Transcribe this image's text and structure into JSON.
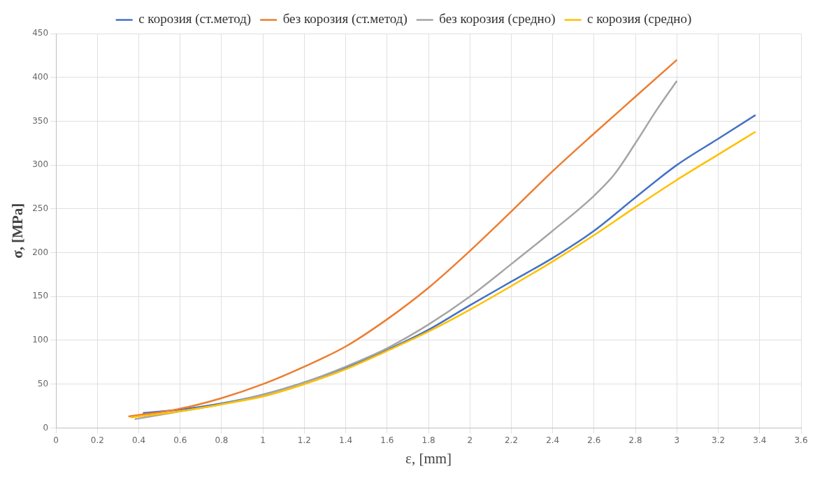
{
  "chart_data": {
    "type": "line",
    "xlabel": "ε, [mm]",
    "ylabel": "σ, [MPa]",
    "xlim": [
      0,
      3.6
    ],
    "ylim": [
      0,
      450
    ],
    "xticks": [
      0,
      0.2,
      0.4,
      0.6,
      0.8,
      1,
      1.2,
      1.4,
      1.6,
      1.8,
      2,
      2.2,
      2.4,
      2.6,
      2.8,
      3,
      3.2,
      3.4,
      3.6
    ],
    "yticks": [
      0,
      50,
      100,
      150,
      200,
      250,
      300,
      350,
      400,
      450
    ],
    "grid": true,
    "legend": "top",
    "marker": "none",
    "line_style": "solid",
    "series": [
      {
        "name": "с корозия (ст.метод)",
        "color": "#4472c4",
        "x": [
          0.42,
          0.6,
          0.8,
          1.0,
          1.2,
          1.4,
          1.6,
          1.8,
          2.0,
          2.2,
          2.4,
          2.6,
          2.8,
          3.0,
          3.2,
          3.38
        ],
        "values": [
          17,
          21,
          28,
          38,
          52,
          69,
          89,
          112,
          140,
          167,
          194,
          225,
          263,
          300,
          330,
          357
        ]
      },
      {
        "name": "без корозия (ст.метод)",
        "color": "#ed7d31",
        "x": [
          0.35,
          0.6,
          0.8,
          1.0,
          1.2,
          1.4,
          1.6,
          1.8,
          2.0,
          2.2,
          2.4,
          2.6,
          2.8,
          3.0
        ],
        "values": [
          13,
          22,
          34,
          50,
          70,
          93,
          124,
          160,
          202,
          247,
          293,
          336,
          378,
          420
        ]
      },
      {
        "name": "без корозия (средно)",
        "color": "#a5a5a5",
        "x": [
          0.38,
          0.6,
          0.8,
          1.0,
          1.2,
          1.4,
          1.6,
          1.8,
          2.0,
          2.2,
          2.4,
          2.6,
          2.7,
          2.8,
          2.9,
          3.0
        ],
        "values": [
          10,
          19,
          27,
          38,
          52,
          70,
          91,
          118,
          150,
          187,
          225,
          265,
          290,
          325,
          362,
          396
        ]
      },
      {
        "name": "с корозия (средно)",
        "color": "#ffc000",
        "x": [
          0.36,
          0.6,
          0.8,
          1.0,
          1.2,
          1.4,
          1.6,
          1.8,
          2.0,
          2.2,
          2.4,
          2.6,
          2.8,
          3.0,
          3.2,
          3.38
        ],
        "values": [
          12,
          19,
          27,
          36,
          50,
          67,
          88,
          110,
          135,
          162,
          190,
          220,
          252,
          283,
          312,
          338
        ]
      }
    ]
  }
}
